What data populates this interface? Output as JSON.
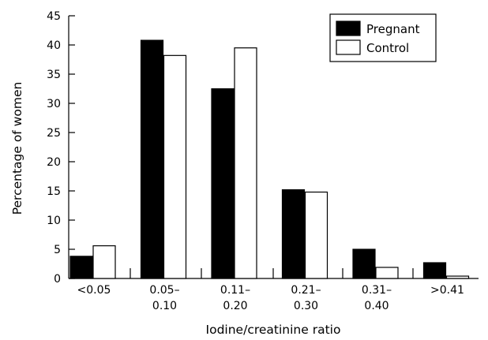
{
  "chart_data": {
    "type": "bar",
    "title": "",
    "xlabel": "Iodine/creatinine ratio",
    "ylabel": "Percentage of women",
    "ylim": [
      0,
      45
    ],
    "yticks": [
      "0",
      "5",
      "10",
      "15",
      "20",
      "25",
      "30",
      "35",
      "40",
      "45"
    ],
    "grid": false,
    "legend_position": "top-right",
    "categories": [
      [
        "<0.05"
      ],
      [
        "0.05–",
        "0.10"
      ],
      [
        "0.11–",
        "0.20"
      ],
      [
        "0.21–",
        "0.30"
      ],
      [
        "0.31–",
        "0.40"
      ],
      [
        ">0.41"
      ]
    ],
    "series": [
      {
        "name": "Pregnant",
        "color": "#000000",
        "values": [
          3.8,
          40.8,
          32.5,
          15.2,
          5.0,
          2.7
        ]
      },
      {
        "name": "Control",
        "color": "#ffffff",
        "values": [
          5.6,
          38.2,
          39.5,
          14.8,
          1.9,
          0.4
        ]
      }
    ]
  }
}
